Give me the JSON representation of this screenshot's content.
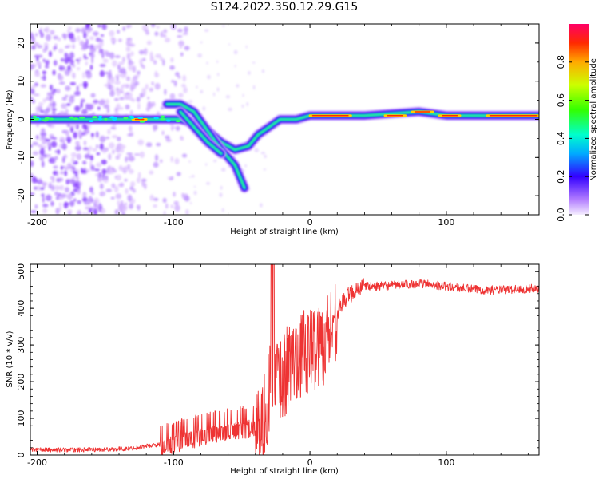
{
  "title": "S124.2022.350.12.29.G15",
  "chart_data": [
    {
      "type": "heatmap",
      "xlabel": "Height of straight line (km)",
      "ylabel": "Frequency (Hz)",
      "xlim": [
        -205,
        168
      ],
      "ylim": [
        -25,
        25
      ],
      "x_ticks": [
        -200,
        -100,
        0,
        100
      ],
      "y_ticks": [
        20,
        10,
        0,
        -10,
        -20
      ],
      "colormap": "rainbow",
      "colorbar": {
        "label": "Normalized spectral amplitude",
        "range": [
          0,
          1
        ],
        "ticks": [
          "0.0",
          "0.2",
          "0.4",
          "0.6",
          "0.8"
        ]
      },
      "ridge": [
        {
          "x": -205,
          "y": 0
        },
        {
          "x": -150,
          "y": 0
        },
        {
          "x": -120,
          "y": 0
        },
        {
          "x": -105,
          "y": 0
        },
        {
          "x": -100,
          "y": 0
        },
        {
          "x": -95,
          "y": 0
        },
        {
          "x": -85,
          "y": -1
        },
        {
          "x": -75,
          "y": -3
        },
        {
          "x": -65,
          "y": -6
        },
        {
          "x": -55,
          "y": -8
        },
        {
          "x": -45,
          "y": -7
        },
        {
          "x": -38,
          "y": -4
        },
        {
          "x": -30,
          "y": -2
        },
        {
          "x": -22,
          "y": 0
        },
        {
          "x": -10,
          "y": 0
        },
        {
          "x": 0,
          "y": 1
        },
        {
          "x": 40,
          "y": 1
        },
        {
          "x": 80,
          "y": 2
        },
        {
          "x": 100,
          "y": 1
        },
        {
          "x": 168,
          "y": 1
        }
      ],
      "branches": [
        {
          "points": [
            {
              "x": -105,
              "y": 4
            },
            {
              "x": -95,
              "y": 4
            },
            {
              "x": -85,
              "y": 2
            },
            {
              "x": -75,
              "y": -3
            },
            {
              "x": -65,
              "y": -8
            },
            {
              "x": -55,
              "y": -12
            },
            {
              "x": -48,
              "y": -18
            }
          ]
        },
        {
          "points": [
            {
              "x": -95,
              "y": 2
            },
            {
              "x": -85,
              "y": -2
            },
            {
              "x": -75,
              "y": -6
            },
            {
              "x": -65,
              "y": -9
            }
          ]
        }
      ]
    },
    {
      "type": "line",
      "xlabel": "Height of straight line (km)",
      "ylabel": "SNR (10 * v/v)",
      "xlim": [
        -205,
        168
      ],
      "ylim": [
        0,
        520
      ],
      "x_ticks": [
        -200,
        -100,
        0,
        100
      ],
      "y_ticks": [
        0,
        100,
        200,
        300,
        400,
        500
      ],
      "color": "#ee3333",
      "series": [
        {
          "x": [
            -205,
            -190,
            -170,
            -150,
            -130,
            -120,
            -110,
            -100,
            -90,
            -80,
            -70,
            -60,
            -50,
            -45,
            -40,
            -35,
            -30,
            -28,
            -25,
            -20,
            -15,
            -10,
            -5,
            0,
            5,
            10,
            15,
            20,
            25,
            30,
            35,
            40,
            50,
            60,
            70,
            80,
            90,
            100,
            110,
            120,
            130,
            140,
            150,
            160,
            168
          ],
          "y": [
            15,
            14,
            14,
            15,
            18,
            25,
            28,
            35,
            45,
            55,
            65,
            70,
            75,
            78,
            85,
            95,
            180,
            240,
            240,
            220,
            260,
            280,
            290,
            300,
            310,
            320,
            360,
            395,
            420,
            440,
            455,
            460,
            460,
            462,
            465,
            468,
            465,
            460,
            455,
            452,
            450,
            450,
            452,
            453,
            455
          ]
        }
      ]
    }
  ]
}
